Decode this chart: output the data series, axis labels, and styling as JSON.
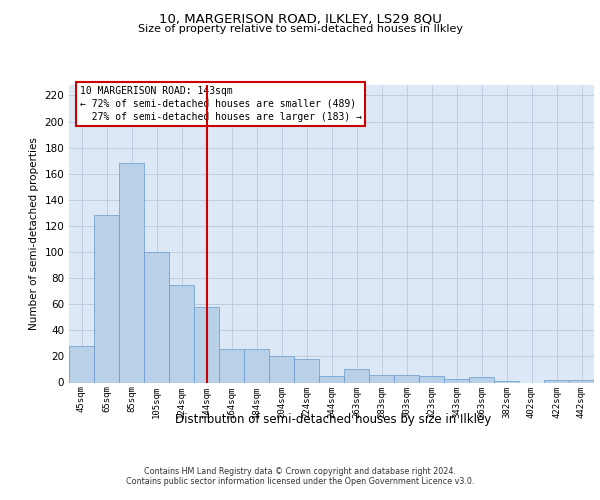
{
  "title1": "10, MARGERISON ROAD, ILKLEY, LS29 8QU",
  "title2": "Size of property relative to semi-detached houses in Ilkley",
  "xlabel": "Distribution of semi-detached houses by size in Ilkley",
  "ylabel": "Number of semi-detached properties",
  "categories": [
    "45sqm",
    "65sqm",
    "85sqm",
    "105sqm",
    "124sqm",
    "144sqm",
    "164sqm",
    "184sqm",
    "204sqm",
    "224sqm",
    "244sqm",
    "263sqm",
    "283sqm",
    "303sqm",
    "323sqm",
    "343sqm",
    "363sqm",
    "382sqm",
    "402sqm",
    "422sqm",
    "442sqm"
  ],
  "values": [
    28,
    128,
    168,
    100,
    75,
    58,
    26,
    26,
    20,
    18,
    5,
    10,
    6,
    6,
    5,
    3,
    4,
    1,
    0,
    2,
    2
  ],
  "bar_color": "#b8d0e8",
  "bar_edge_color": "#6699cc",
  "highlight_label": "10 MARGERISON ROAD: 143sqm",
  "pct_smaller": "72% of semi-detached houses are smaller (489)",
  "pct_larger": "27% of semi-detached houses are larger (183)",
  "annotation_box_color": "#ffffff",
  "annotation_box_edge": "#cc0000",
  "vline_color": "#cc0000",
  "vline_index": 5,
  "ylim": [
    0,
    228
  ],
  "yticks": [
    0,
    20,
    40,
    60,
    80,
    100,
    120,
    140,
    160,
    180,
    200,
    220
  ],
  "grid_color": "#c0cce0",
  "bg_color": "#dce8f5",
  "footer1": "Contains HM Land Registry data © Crown copyright and database right 2024.",
  "footer2": "Contains public sector information licensed under the Open Government Licence v3.0."
}
